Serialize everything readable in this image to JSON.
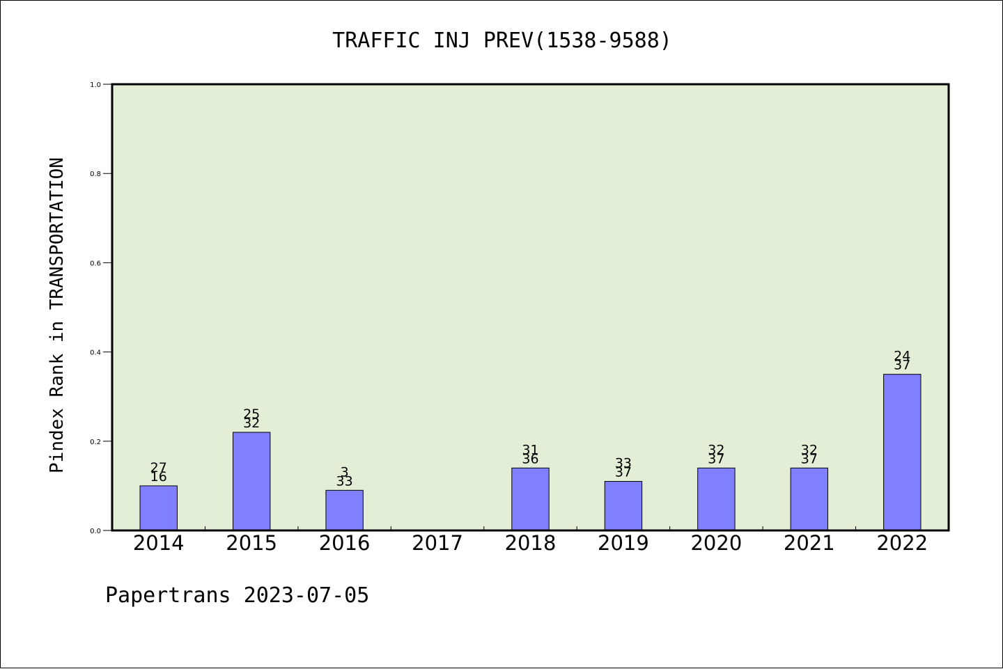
{
  "chart_data": {
    "type": "bar",
    "title": "TRAFFIC INJ PREV(1538-9588)",
    "ylabel": "Pindex Rank in TRANSPORTATION",
    "xlabel": "",
    "ylim": [
      0,
      1.0
    ],
    "yticks": [
      "0.0",
      "0.2",
      "0.4",
      "0.6",
      "0.8",
      "1.0"
    ],
    "categories": [
      "2014",
      "2015",
      "2016",
      "2017",
      "2018",
      "2019",
      "2020",
      "2021",
      "2022"
    ],
    "values": [
      0.1,
      0.22,
      0.09,
      null,
      0.14,
      0.11,
      0.14,
      0.14,
      0.35
    ],
    "labels_top": [
      "27",
      "25",
      "3",
      "",
      "31",
      "33",
      "32",
      "32",
      "24"
    ],
    "labels_bottom": [
      "16",
      "32",
      "33",
      "",
      "36",
      "37",
      "37",
      "37",
      "37"
    ],
    "grid": false,
    "colors": {
      "plot_background": "#e2efd6",
      "bar_fill": "#8080ff",
      "bar_stroke": "#000000"
    },
    "footer": "Papertrans 2023-07-05"
  }
}
